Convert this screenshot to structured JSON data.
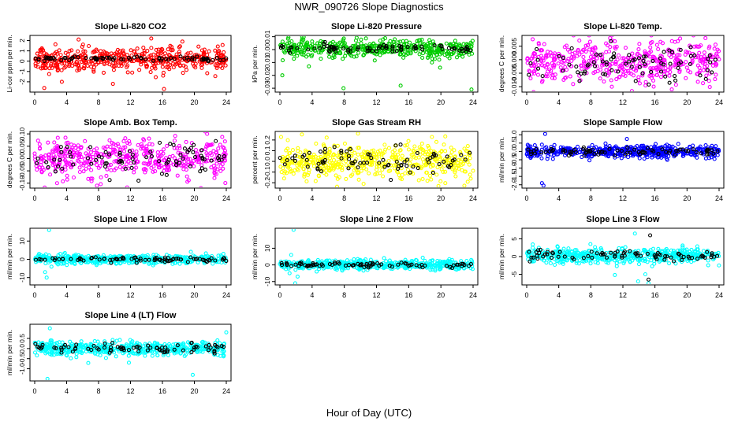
{
  "figure": {
    "title": "NWR_090726  Slope Diagnostics",
    "xlabel": "Hour of Day (UTC)"
  },
  "chart_data": [
    {
      "type": "scatter",
      "title": "Slope Li-820 CO2",
      "ylabel": "Li-cor ppm per min.",
      "xlim": [
        0,
        24
      ],
      "xticks": [
        0,
        4,
        8,
        12,
        16,
        20,
        24
      ],
      "ylim": [
        -3,
        2.5
      ],
      "yticks": [
        -2,
        -1,
        0,
        1,
        2
      ],
      "ytick_labels": [
        "-2",
        "-1",
        "0",
        "1",
        "2"
      ],
      "series": [
        {
          "color": "#ff0000",
          "center": 0.2,
          "spread": 0.55,
          "count": 480,
          "outliers": [
            [
              1.2,
              -2.6
            ],
            [
              5.5,
              2.1
            ],
            [
              9.8,
              -2.2
            ],
            [
              14.6,
              2.2
            ],
            [
              16.2,
              -2.7
            ],
            [
              18.5,
              1.9
            ],
            [
              3.4,
              -2.0
            ]
          ]
        },
        {
          "color": "#000000",
          "center": 0.25,
          "spread": 0.12,
          "count": 80,
          "outliers": []
        }
      ]
    },
    {
      "type": "scatter",
      "title": "Slope Li-820 Pressure",
      "ylabel": "kPa per min.",
      "xlim": [
        0,
        24
      ],
      "xticks": [
        0,
        4,
        8,
        12,
        16,
        20,
        24
      ],
      "ylim": [
        -0.033,
        0.011
      ],
      "yticks": [
        -0.03,
        -0.02,
        -0.01,
        0,
        0.01
      ],
      "ytick_labels": [
        "-0.03",
        "-0.02",
        "-0.01",
        "0.00",
        "0.01"
      ],
      "series": [
        {
          "color": "#00cc00",
          "center": 0.001,
          "spread": 0.0035,
          "count": 450,
          "outliers": [
            [
              0.3,
              -0.02
            ],
            [
              7.9,
              -0.03
            ],
            [
              15.0,
              -0.028
            ],
            [
              23.8,
              -0.031
            ],
            [
              3.6,
              -0.013
            ],
            [
              19.9,
              -0.014
            ]
          ]
        },
        {
          "color": "#000000",
          "center": 0.001,
          "spread": 0.0018,
          "count": 80,
          "outliers": []
        }
      ]
    },
    {
      "type": "scatter",
      "title": "Slope Li-820 Temp.",
      "ylabel": "degrees C per min.",
      "xlim": [
        0,
        24
      ],
      "xticks": [
        0,
        4,
        8,
        12,
        16,
        20,
        24
      ],
      "ylim": [
        -0.012,
        0.009
      ],
      "yticks": [
        -0.01,
        -0.005,
        0,
        0.005
      ],
      "ytick_labels": [
        "-0.010",
        "-0.005",
        "0.000",
        "0.005"
      ],
      "series": [
        {
          "color": "#ff00ff",
          "center": -0.001,
          "spread": 0.004,
          "count": 450,
          "outliers": [
            [
              10.4,
              0.008
            ],
            [
              18.1,
              -0.011
            ],
            [
              22.3,
              0.008
            ]
          ]
        },
        {
          "color": "#000000",
          "center": -0.001,
          "spread": 0.0032,
          "count": 80,
          "outliers": []
        }
      ]
    },
    {
      "type": "scatter",
      "title": "Slope Amb. Box Temp.",
      "ylabel": "degrees C per min.",
      "xlim": [
        0,
        24
      ],
      "xticks": [
        0,
        4,
        8,
        12,
        16,
        20,
        24
      ],
      "ylim": [
        -0.12,
        0.11
      ],
      "yticks": [
        -0.1,
        -0.05,
        0,
        0.05,
        0.1
      ],
      "ytick_labels": [
        "-0.10",
        "-0.05",
        "0.00",
        "0.05",
        "0.10"
      ],
      "series": [
        {
          "color": "#ff00ff",
          "center": 0.0,
          "spread": 0.04,
          "count": 450,
          "outliers": [
            [
              7.8,
              -0.11
            ],
            [
              21.6,
              0.1
            ],
            [
              2.8,
              -0.1
            ]
          ]
        },
        {
          "color": "#000000",
          "center": 0.0,
          "spread": 0.035,
          "count": 80,
          "outliers": []
        }
      ]
    },
    {
      "type": "scatter",
      "title": "Slope Gas Stream RH",
      "ylabel": "percent per min.",
      "xlim": [
        0,
        24
      ],
      "xticks": [
        0,
        4,
        8,
        12,
        16,
        20,
        24
      ],
      "ylim": [
        -0.25,
        0.28
      ],
      "yticks": [
        -0.2,
        -0.1,
        0,
        0.1,
        0.2
      ],
      "ytick_labels": [
        "-0.2",
        "-0.1",
        "0.0",
        "0.1",
        "0.2"
      ],
      "series": [
        {
          "color": "#ffff00",
          "center": 0.0,
          "spread": 0.085,
          "count": 500,
          "outliers": [
            [
              9.7,
              0.26
            ],
            [
              19.7,
              -0.23
            ]
          ]
        },
        {
          "color": "#000000",
          "center": 0.0,
          "spread": 0.06,
          "count": 80,
          "outliers": []
        }
      ]
    },
    {
      "type": "scatter",
      "title": "Slope Sample Flow",
      "ylabel": "ml/min per min.",
      "xlim": [
        0,
        24
      ],
      "xticks": [
        0,
        4,
        8,
        12,
        16,
        20,
        24
      ],
      "ylim": [
        -2.2,
        1.2
      ],
      "yticks": [
        -2,
        -1.5,
        -1,
        -0.5,
        0,
        0.5,
        1
      ],
      "ytick_labels": [
        "-2.0",
        "-1.5",
        "-1.0",
        "-0.5",
        "0.0",
        "0.5",
        "1.0"
      ],
      "series": [
        {
          "color": "#0000ff",
          "center": 0.0,
          "spread": 0.18,
          "count": 480,
          "outliers": [
            [
              1.9,
              -1.9
            ],
            [
              2.1,
              -2.05
            ],
            [
              2.3,
              1.05
            ],
            [
              12.5,
              0.75
            ]
          ]
        },
        {
          "color": "#000000",
          "center": 0.0,
          "spread": 0.12,
          "count": 80,
          "outliers": []
        }
      ]
    },
    {
      "type": "scatter",
      "title": "Slope Line 1 Flow",
      "ylabel": "ml/min per min.",
      "xlim": [
        0,
        24
      ],
      "xticks": [
        0,
        4,
        8,
        12,
        16,
        20,
        24
      ],
      "ylim": [
        -14,
        17
      ],
      "yticks": [
        -10,
        0,
        10
      ],
      "ytick_labels": [
        "-10",
        "0",
        "10"
      ],
      "series": [
        {
          "color": "#00ffff",
          "center": 0.0,
          "spread": 1.3,
          "count": 480,
          "outliers": [
            [
              1.8,
              16
            ],
            [
              1.5,
              -10
            ],
            [
              1.3,
              -7
            ],
            [
              2.1,
              -4
            ]
          ]
        },
        {
          "color": "#000000",
          "center": 0.0,
          "spread": 0.7,
          "count": 80,
          "outliers": []
        }
      ]
    },
    {
      "type": "scatter",
      "title": "Slope Line 2 Flow",
      "ylabel": "ml/min per min.",
      "xlim": [
        0,
        24
      ],
      "xticks": [
        0,
        4,
        8,
        12,
        16,
        20,
        24
      ],
      "ylim": [
        -12,
        22
      ],
      "yticks": [
        -10,
        0,
        10
      ],
      "ytick_labels": [
        "-10",
        "0",
        "10"
      ],
      "series": [
        {
          "color": "#00ffff",
          "center": 0.0,
          "spread": 1.4,
          "count": 480,
          "outliers": [
            [
              1.7,
              21
            ],
            [
              1.9,
              -11
            ],
            [
              1.4,
              6
            ],
            [
              2.2,
              -7
            ],
            [
              1.2,
              -5
            ]
          ]
        },
        {
          "color": "#000000",
          "center": 0.0,
          "spread": 0.8,
          "count": 80,
          "outliers": []
        }
      ]
    },
    {
      "type": "scatter",
      "title": "Slope Line 3 Flow",
      "ylabel": "ml/min per min.",
      "xlim": [
        0,
        24
      ],
      "xticks": [
        0,
        4,
        8,
        12,
        16,
        20,
        24
      ],
      "ylim": [
        -8,
        8
      ],
      "yticks": [
        -5,
        0,
        5
      ],
      "ytick_labels": [
        "-5",
        "0",
        "5"
      ],
      "series": [
        {
          "color": "#00ffff",
          "center": 0.3,
          "spread": 1.1,
          "count": 480,
          "outliers": [
            [
              13.5,
              6.5
            ],
            [
              15.2,
              -7.5
            ],
            [
              14.8,
              -5.0
            ],
            [
              11.0,
              -5.2
            ],
            [
              13.9,
              -7.0
            ]
          ]
        },
        {
          "color": "#000000",
          "center": 0.3,
          "spread": 0.8,
          "count": 80,
          "outliers": [
            [
              15.4,
              6.0
            ],
            [
              15.2,
              -6.5
            ]
          ]
        }
      ]
    },
    {
      "type": "scatter",
      "title": "Slope Line 4 (LT) Flow",
      "ylabel": "ml/min per min.",
      "xlim": [
        0,
        24
      ],
      "xticks": [
        0,
        4,
        8,
        12,
        16,
        20,
        24
      ],
      "ylim": [
        -1.6,
        1.2
      ],
      "yticks": [
        -1,
        -0.5,
        0,
        0.5
      ],
      "ytick_labels": [
        "-1.0",
        "-0.5",
        "0.0",
        "0.5"
      ],
      "series": [
        {
          "color": "#00ffff",
          "center": 0.0,
          "spread": 0.18,
          "count": 480,
          "outliers": [
            [
              1.9,
              1.0
            ],
            [
              1.6,
              -1.5
            ],
            [
              11.8,
              -0.7
            ],
            [
              19.8,
              -1.3
            ],
            [
              24.0,
              0.8
            ]
          ]
        },
        {
          "color": "#000000",
          "center": 0.0,
          "spread": 0.12,
          "count": 80,
          "outliers": []
        }
      ]
    }
  ]
}
